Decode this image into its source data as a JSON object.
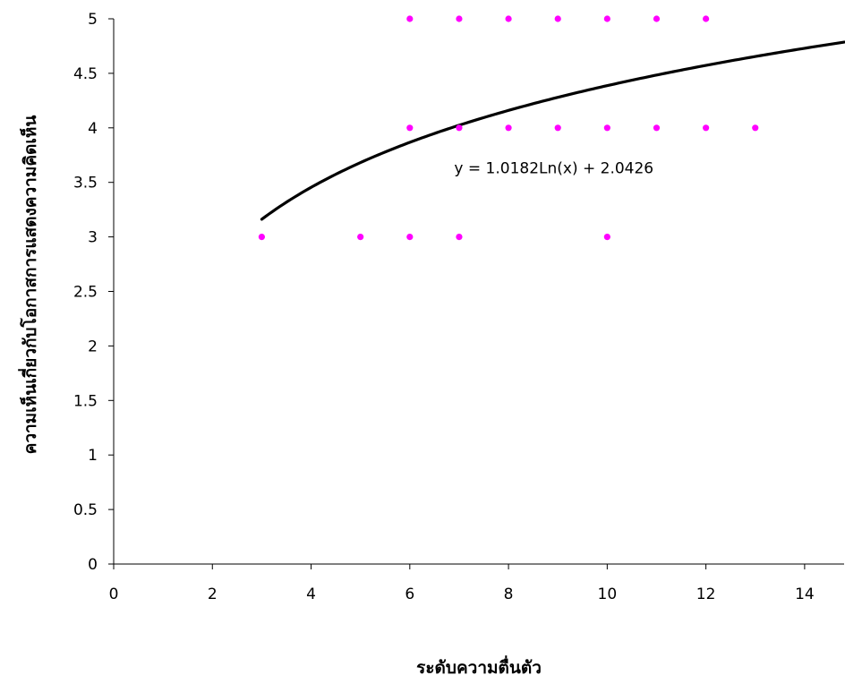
{
  "chart_data": {
    "type": "scatter",
    "xlabel": "ระดับความตื่นตัว",
    "ylabel": "ความเห็นเกี่ยวกับโอกาสการแสดงความคิดเห็น",
    "xlim": [
      0,
      14.8
    ],
    "ylim": [
      0,
      5
    ],
    "x_ticks": [
      "0",
      "2",
      "4",
      "6",
      "8",
      "10",
      "12",
      "14"
    ],
    "y_ticks": [
      "0",
      "0.5",
      "1",
      "1.5",
      "2",
      "2.5",
      "3",
      "3.5",
      "4",
      "4.5",
      "5"
    ],
    "grid": false,
    "legend": "none",
    "marker_color": "#ff00ff",
    "line_color": "#000000",
    "points": [
      {
        "x": 3,
        "y": 3
      },
      {
        "x": 5,
        "y": 3
      },
      {
        "x": 6,
        "y": 3
      },
      {
        "x": 7,
        "y": 3
      },
      {
        "x": 10,
        "y": 3
      },
      {
        "x": 6,
        "y": 4
      },
      {
        "x": 7,
        "y": 4
      },
      {
        "x": 8,
        "y": 4
      },
      {
        "x": 9,
        "y": 4
      },
      {
        "x": 10,
        "y": 4
      },
      {
        "x": 11,
        "y": 4
      },
      {
        "x": 12,
        "y": 4
      },
      {
        "x": 13,
        "y": 4
      },
      {
        "x": 6,
        "y": 5
      },
      {
        "x": 7,
        "y": 5
      },
      {
        "x": 8,
        "y": 5
      },
      {
        "x": 9,
        "y": 5
      },
      {
        "x": 10,
        "y": 5
      },
      {
        "x": 11,
        "y": 5
      },
      {
        "x": 12,
        "y": 5
      }
    ],
    "trendline": {
      "type": "logarithmic",
      "a": 1.0182,
      "b": 2.0426,
      "x_range": [
        3,
        14.8
      ],
      "equation_label": "y = 1.0182Ln(x) + 2.0426"
    }
  }
}
